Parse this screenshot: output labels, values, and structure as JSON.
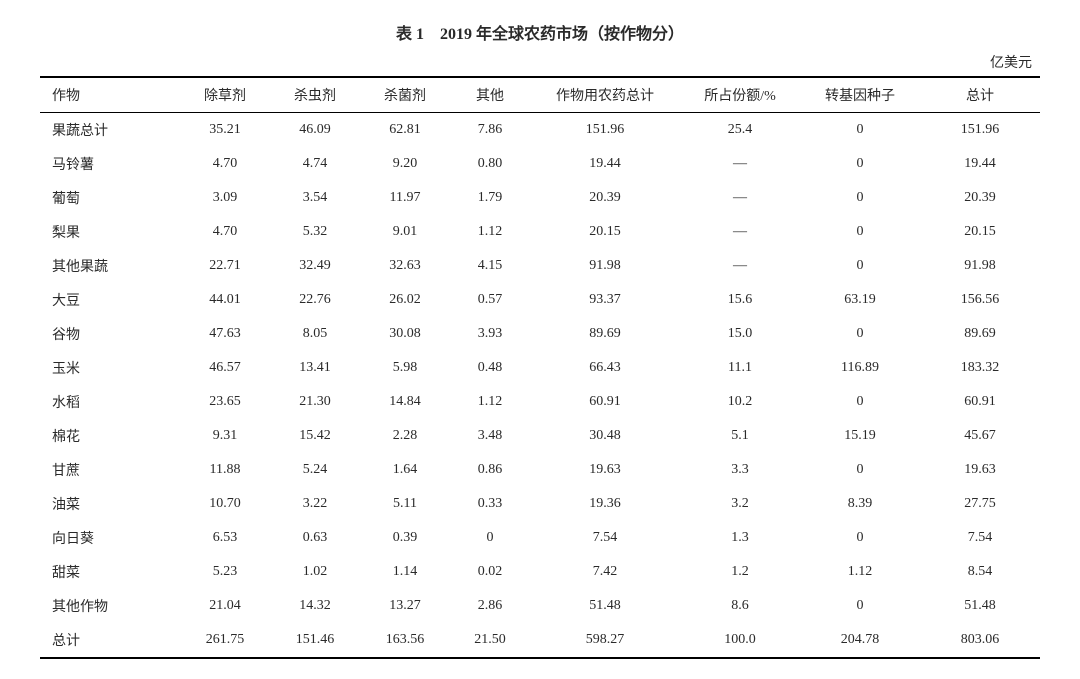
{
  "title": "表 1　2019 年全球农药市场（按作物分）",
  "unit": "亿美元",
  "columns": [
    "作物",
    "除草剂",
    "杀虫剂",
    "杀菌剂",
    "其他",
    "作物用农药总计",
    "所占份额/%",
    "转基因种子",
    "总计"
  ],
  "rows": [
    {
      "indent": false,
      "cells": [
        "果蔬总计",
        "35.21",
        "46.09",
        "62.81",
        "7.86",
        "151.96",
        "25.4",
        "0",
        "151.96"
      ]
    },
    {
      "indent": true,
      "cells": [
        "马铃薯",
        "4.70",
        "4.74",
        "9.20",
        "0.80",
        "19.44",
        "—",
        "0",
        "19.44"
      ]
    },
    {
      "indent": true,
      "cells": [
        "葡萄",
        "3.09",
        "3.54",
        "11.97",
        "1.79",
        "20.39",
        "—",
        "0",
        "20.39"
      ]
    },
    {
      "indent": true,
      "cells": [
        "梨果",
        "4.70",
        "5.32",
        "9.01",
        "1.12",
        "20.15",
        "—",
        "0",
        "20.15"
      ]
    },
    {
      "indent": true,
      "cells": [
        "其他果蔬",
        "22.71",
        "32.49",
        "32.63",
        "4.15",
        "91.98",
        "—",
        "0",
        "91.98"
      ]
    },
    {
      "indent": false,
      "cells": [
        "大豆",
        "44.01",
        "22.76",
        "26.02",
        "0.57",
        "93.37",
        "15.6",
        "63.19",
        "156.56"
      ]
    },
    {
      "indent": false,
      "cells": [
        "谷物",
        "47.63",
        "8.05",
        "30.08",
        "3.93",
        "89.69",
        "15.0",
        "0",
        "89.69"
      ]
    },
    {
      "indent": false,
      "cells": [
        "玉米",
        "46.57",
        "13.41",
        "5.98",
        "0.48",
        "66.43",
        "11.1",
        "116.89",
        "183.32"
      ]
    },
    {
      "indent": false,
      "cells": [
        "水稻",
        "23.65",
        "21.30",
        "14.84",
        "1.12",
        "60.91",
        "10.2",
        "0",
        "60.91"
      ]
    },
    {
      "indent": false,
      "cells": [
        "棉花",
        "9.31",
        "15.42",
        "2.28",
        "3.48",
        "30.48",
        "5.1",
        "15.19",
        "45.67"
      ]
    },
    {
      "indent": false,
      "cells": [
        "甘蔗",
        "11.88",
        "5.24",
        "1.64",
        "0.86",
        "19.63",
        "3.3",
        "0",
        "19.63"
      ]
    },
    {
      "indent": false,
      "cells": [
        "油菜",
        "10.70",
        "3.22",
        "5.11",
        "0.33",
        "19.36",
        "3.2",
        "8.39",
        "27.75"
      ]
    },
    {
      "indent": false,
      "cells": [
        "向日葵",
        "6.53",
        "0.63",
        "0.39",
        "0",
        "7.54",
        "1.3",
        "0",
        "7.54"
      ]
    },
    {
      "indent": false,
      "cells": [
        "甜菜",
        "5.23",
        "1.02",
        "1.14",
        "0.02",
        "7.42",
        "1.2",
        "1.12",
        "8.54"
      ]
    },
    {
      "indent": false,
      "cells": [
        "其他作物",
        "21.04",
        "14.32",
        "13.27",
        "2.86",
        "51.48",
        "8.6",
        "0",
        "51.48"
      ]
    },
    {
      "indent": false,
      "cells": [
        "总计",
        "261.75",
        "151.46",
        "163.56",
        "21.50",
        "598.27",
        "100.0",
        "204.78",
        "803.06"
      ]
    }
  ],
  "col_widths": [
    "14%",
    "9%",
    "9%",
    "9%",
    "8%",
    "15%",
    "12%",
    "12%",
    "12%"
  ]
}
